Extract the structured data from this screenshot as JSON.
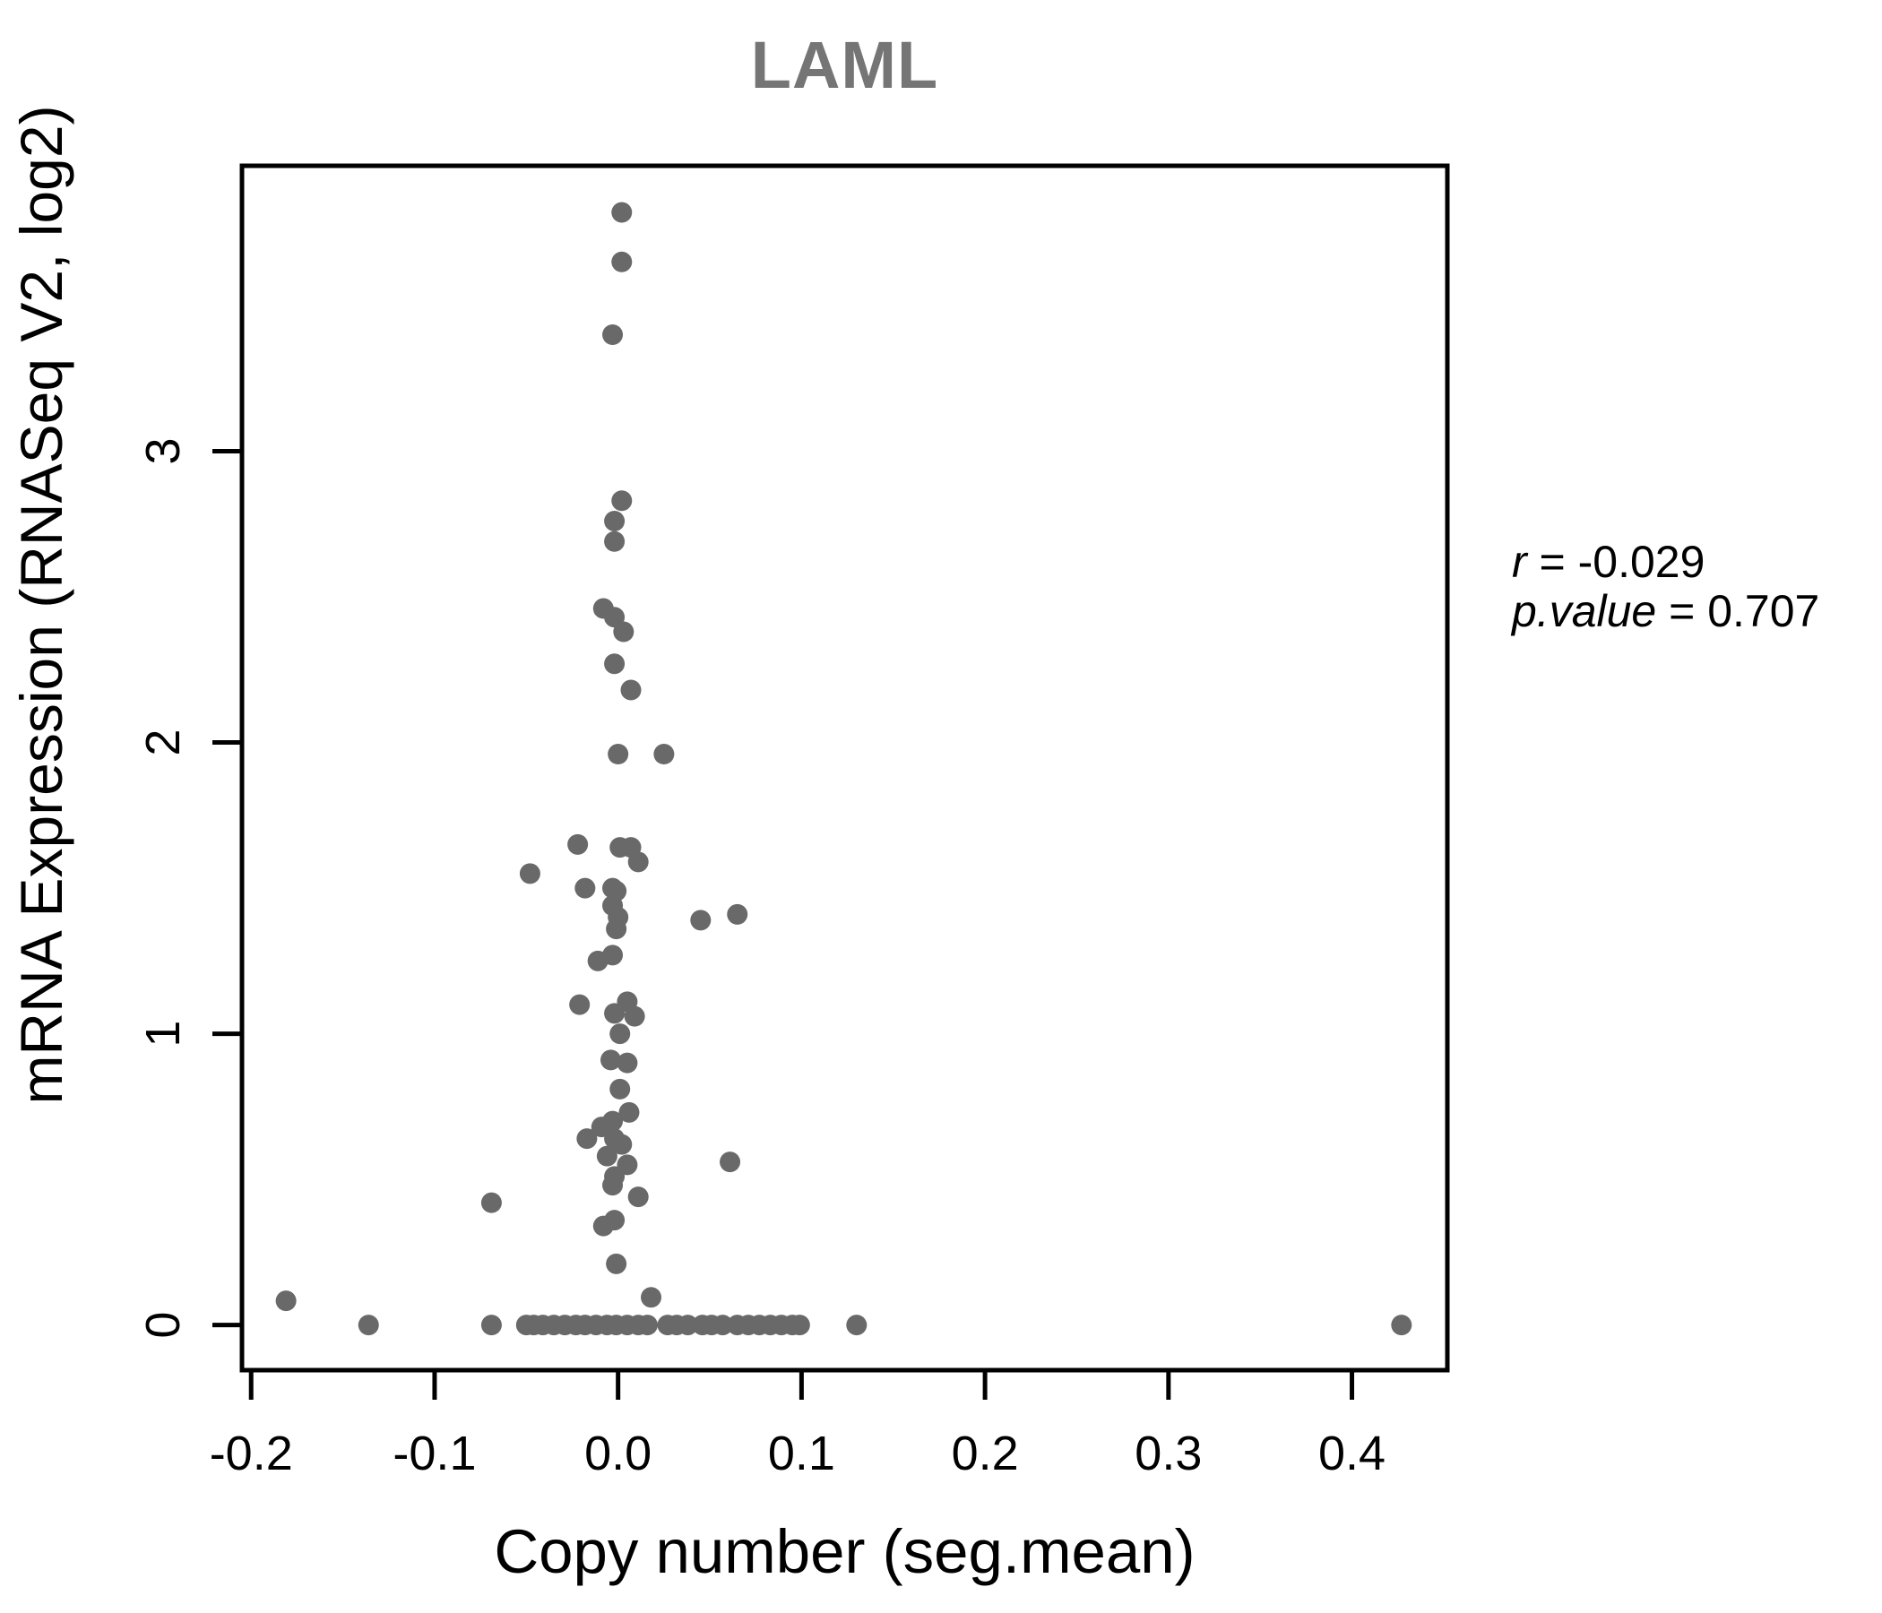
{
  "title": "LAML",
  "annotation": {
    "r_var": "r",
    "r_rest": " = -0.029",
    "p_var": "p.value",
    "p_rest": " = 0.707"
  },
  "chart_data": {
    "type": "scatter",
    "title": "LAML",
    "xlabel": "Copy number (seg.mean)",
    "ylabel": "mRNA Expression (RNASeq V2, log2)",
    "xlim": [
      -0.205,
      0.452
    ],
    "ylim": [
      -0.155,
      3.98
    ],
    "x_ticks": [
      -0.2,
      -0.1,
      0.0,
      0.1,
      0.2,
      0.3,
      0.4
    ],
    "x_tick_labels": [
      "-0.2",
      "-0.1",
      "0.0",
      "0.1",
      "0.2",
      "0.3",
      "0.4"
    ],
    "y_ticks": [
      0,
      1,
      2,
      3
    ],
    "y_tick_labels": [
      "0",
      "1",
      "2",
      "3"
    ],
    "grid": false,
    "legend": null,
    "stats": {
      "r": -0.029,
      "p_value": 0.707
    },
    "point_color": "#696969",
    "points": [
      [
        0.002,
        3.82
      ],
      [
        0.002,
        3.65
      ],
      [
        -0.003,
        3.4
      ],
      [
        0.002,
        2.83
      ],
      [
        -0.002,
        2.76
      ],
      [
        -0.002,
        2.69
      ],
      [
        -0.008,
        2.46
      ],
      [
        -0.002,
        2.43
      ],
      [
        0.003,
        2.38
      ],
      [
        -0.002,
        2.27
      ],
      [
        0.007,
        2.18
      ],
      [
        0.0,
        1.96
      ],
      [
        0.025,
        1.96
      ],
      [
        -0.022,
        1.65
      ],
      [
        0.001,
        1.64
      ],
      [
        0.007,
        1.64
      ],
      [
        0.011,
        1.59
      ],
      [
        -0.048,
        1.55
      ],
      [
        -0.018,
        1.5
      ],
      [
        -0.003,
        1.5
      ],
      [
        -0.001,
        1.49
      ],
      [
        -0.003,
        1.44
      ],
      [
        0.065,
        1.41
      ],
      [
        0.0,
        1.4
      ],
      [
        0.045,
        1.39
      ],
      [
        -0.001,
        1.36
      ],
      [
        -0.003,
        1.27
      ],
      [
        -0.011,
        1.25
      ],
      [
        0.005,
        1.11
      ],
      [
        -0.021,
        1.1
      ],
      [
        -0.002,
        1.07
      ],
      [
        0.009,
        1.06
      ],
      [
        0.001,
        1.0
      ],
      [
        -0.004,
        0.91
      ],
      [
        0.005,
        0.9
      ],
      [
        0.001,
        0.81
      ],
      [
        0.006,
        0.73
      ],
      [
        -0.009,
        0.68
      ],
      [
        -0.003,
        0.7
      ],
      [
        -0.017,
        0.64
      ],
      [
        -0.002,
        0.64
      ],
      [
        0.002,
        0.62
      ],
      [
        -0.006,
        0.58
      ],
      [
        0.061,
        0.56
      ],
      [
        0.005,
        0.55
      ],
      [
        -0.002,
        0.51
      ],
      [
        -0.003,
        0.48
      ],
      [
        0.011,
        0.44
      ],
      [
        -0.069,
        0.42
      ],
      [
        -0.002,
        0.36
      ],
      [
        -0.008,
        0.34
      ],
      [
        -0.001,
        0.21
      ],
      [
        0.018,
        0.095
      ],
      [
        -0.181,
        0.083
      ],
      [
        -0.136,
        0
      ],
      [
        -0.069,
        0
      ],
      [
        -0.05,
        0
      ],
      [
        -0.046,
        0
      ],
      [
        -0.041,
        0
      ],
      [
        -0.035,
        0
      ],
      [
        -0.029,
        0
      ],
      [
        -0.023,
        0
      ],
      [
        -0.018,
        0
      ],
      [
        -0.012,
        0
      ],
      [
        -0.006,
        0
      ],
      [
        -0.001,
        0
      ],
      [
        0.005,
        0
      ],
      [
        0.011,
        0
      ],
      [
        0.016,
        0
      ],
      [
        0.027,
        0
      ],
      [
        0.032,
        0
      ],
      [
        0.038,
        0
      ],
      [
        0.046,
        0
      ],
      [
        0.051,
        0
      ],
      [
        0.057,
        0
      ],
      [
        0.065,
        0
      ],
      [
        0.071,
        0
      ],
      [
        0.077,
        0
      ],
      [
        0.083,
        0
      ],
      [
        0.089,
        0
      ],
      [
        0.095,
        0
      ],
      [
        0.099,
        0
      ],
      [
        0.13,
        0
      ],
      [
        0.427,
        0
      ]
    ]
  },
  "colors": {
    "title": "#757575",
    "point": "#696969",
    "axis": "#000000",
    "background": "#ffffff"
  }
}
